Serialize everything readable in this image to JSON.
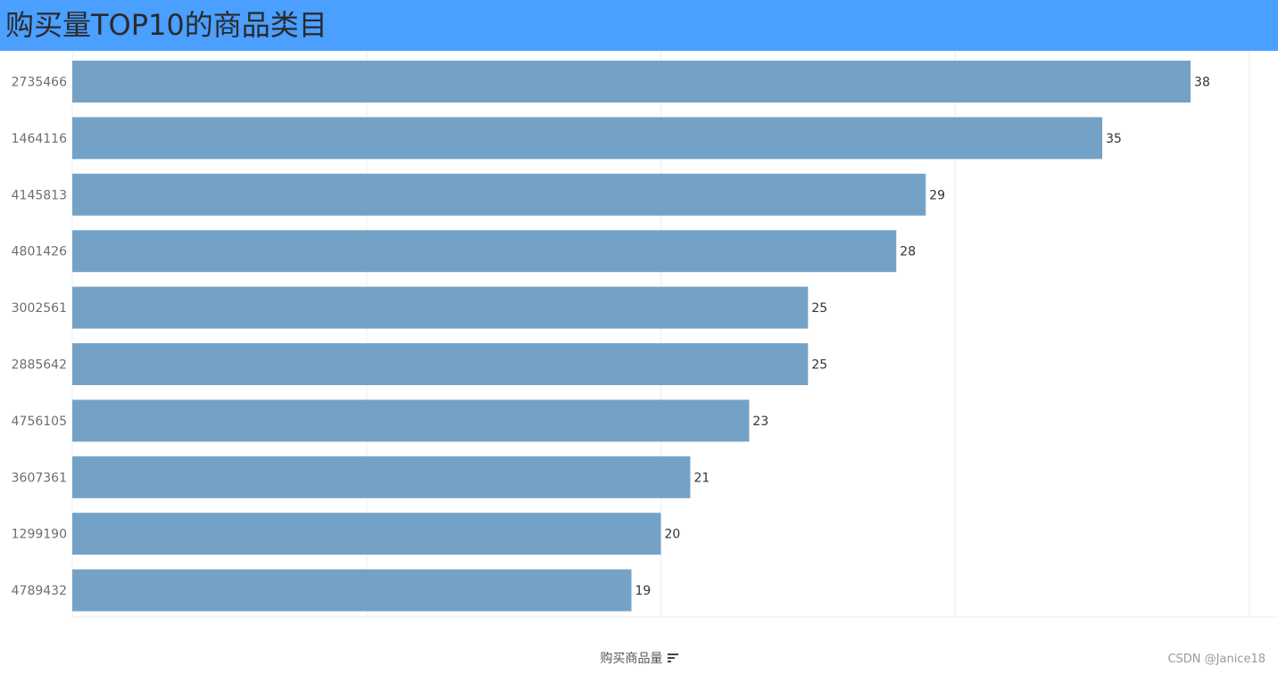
{
  "header": {
    "title": "购买量TOP10的商品类目"
  },
  "chart_data": {
    "type": "bar",
    "orientation": "horizontal",
    "categories": [
      "2735466",
      "1464116",
      "4145813",
      "4801426",
      "3002561",
      "2885642",
      "4756105",
      "3607361",
      "1299190",
      "4789432"
    ],
    "values": [
      38,
      35,
      29,
      28,
      25,
      25,
      23,
      21,
      20,
      19
    ],
    "xlabel": "购买商品量",
    "ylabel": "",
    "xlim": [
      0,
      40
    ],
    "grid": true,
    "bar_color": "#74a2c7",
    "data_labels": true
  },
  "footer": {
    "sort_icon": "sort-descending-icon",
    "watermark": "CSDN @Janice18"
  },
  "colors": {
    "header_bg": "#4a9fff",
    "bar": "#74a2c7",
    "gridline": "#eeeeee"
  }
}
